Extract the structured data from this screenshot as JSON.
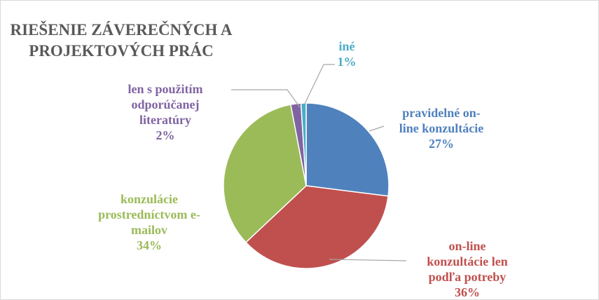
{
  "chart_data": {
    "type": "pie",
    "title": "RIEŠENIE ZÁVEREČNÝCH A PROJEKTOVÝCH PRÁC",
    "categories": [
      "pravidelné on-line konzultácie",
      "on-line konzultácie len podľa potreby",
      "konzulácie prostredníctvom e-mailov",
      "len s použitím odporúčanej literatúry",
      "iné"
    ],
    "values": [
      27,
      36,
      34,
      2,
      1
    ],
    "value_labels": [
      "27%",
      "36%",
      "34%",
      "2%",
      "1%"
    ],
    "colors": [
      "#4f81bd",
      "#c0504d",
      "#9bbb59",
      "#8064a2",
      "#4bacc6"
    ]
  }
}
